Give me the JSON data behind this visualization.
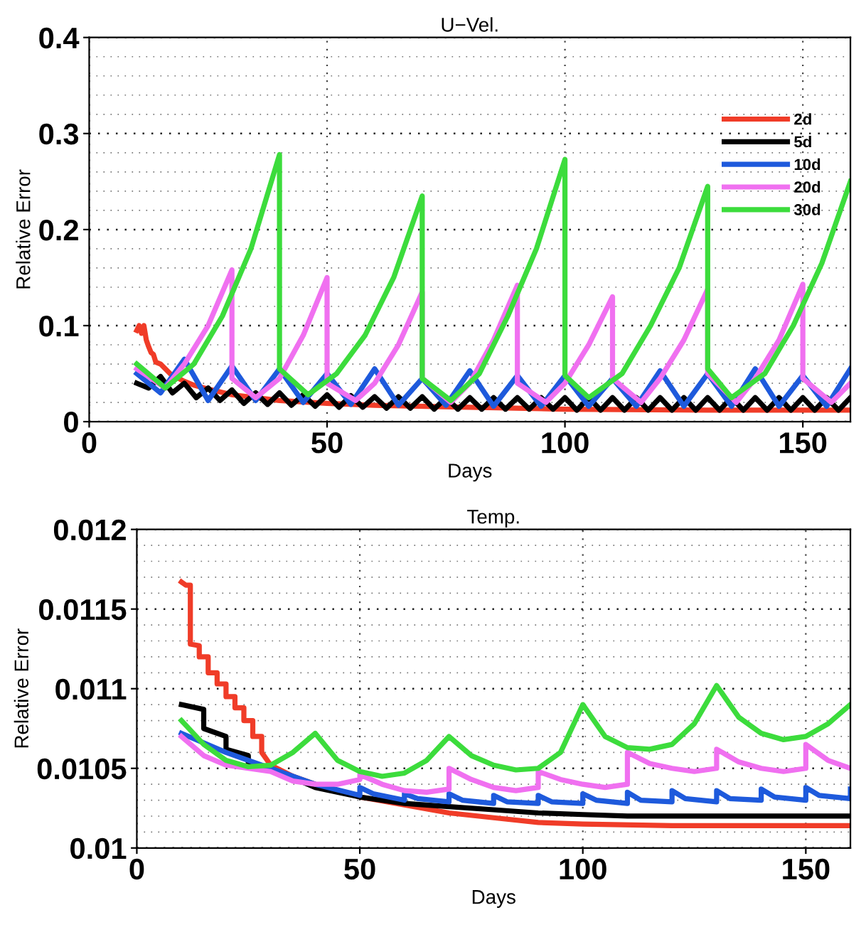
{
  "chart_data": [
    {
      "type": "line",
      "title": "U−Vel.",
      "xlabel": "Days",
      "ylabel": "Relative Error",
      "xlim": [
        0,
        160
      ],
      "ylim": [
        0,
        0.4
      ],
      "xticks": [
        0,
        50,
        100,
        150
      ],
      "yticks": [
        0,
        0.1,
        0.2,
        0.3,
        0.4
      ],
      "grid": true,
      "legend": "top right",
      "line_style": "solid",
      "series": [
        {
          "name": "2d",
          "color": "#f03c28",
          "x": [
            10,
            10.5,
            11,
            11.5,
            12,
            12.5,
            13,
            13.5,
            14,
            15,
            16,
            17,
            18,
            20,
            22,
            25,
            30,
            35,
            40,
            50,
            60,
            80,
            100,
            130,
            160
          ],
          "values": [
            0.095,
            0.1,
            0.092,
            0.1,
            0.085,
            0.078,
            0.072,
            0.07,
            0.062,
            0.06,
            0.055,
            0.05,
            0.047,
            0.042,
            0.038,
            0.034,
            0.028,
            0.025,
            0.022,
            0.019,
            0.017,
            0.015,
            0.013,
            0.012,
            0.012
          ]
        },
        {
          "name": "5d",
          "color": "#000000",
          "x": [
            10,
            12.5,
            15,
            17.5,
            20,
            22.5,
            25,
            27.5,
            30,
            32.5,
            35,
            37.5,
            40,
            42.5,
            45,
            47.5,
            50,
            52.5,
            55,
            57.5,
            60,
            62.5,
            65,
            67.5,
            70,
            72.5,
            75,
            77.5,
            80,
            82.5,
            85,
            87.5,
            90,
            92.5,
            95,
            97.5,
            100,
            102.5,
            105,
            107.5,
            110,
            112.5,
            115,
            117.5,
            120,
            122.5,
            125,
            127.5,
            130,
            132.5,
            135,
            137.5,
            140,
            142.5,
            145,
            147.5,
            150,
            152.5,
            155,
            157.5,
            160
          ],
          "values": [
            0.04,
            0.035,
            0.047,
            0.03,
            0.04,
            0.025,
            0.035,
            0.022,
            0.033,
            0.019,
            0.03,
            0.018,
            0.03,
            0.017,
            0.028,
            0.016,
            0.028,
            0.015,
            0.027,
            0.015,
            0.026,
            0.014,
            0.026,
            0.014,
            0.026,
            0.013,
            0.025,
            0.013,
            0.025,
            0.013,
            0.025,
            0.013,
            0.025,
            0.013,
            0.025,
            0.013,
            0.025,
            0.012,
            0.025,
            0.012,
            0.025,
            0.012,
            0.025,
            0.012,
            0.025,
            0.012,
            0.025,
            0.012,
            0.025,
            0.012,
            0.025,
            0.012,
            0.025,
            0.012,
            0.025,
            0.012,
            0.025,
            0.012,
            0.025,
            0.012,
            0.025
          ]
        },
        {
          "name": "10d",
          "color": "#1e5adc",
          "x": [
            10,
            15,
            20,
            25,
            30,
            35,
            40,
            45,
            50,
            55,
            60,
            65,
            70,
            75,
            80,
            85,
            90,
            95,
            100,
            105,
            110,
            115,
            120,
            125,
            130,
            135,
            140,
            145,
            150,
            155,
            160
          ],
          "values": [
            0.05,
            0.03,
            0.065,
            0.022,
            0.058,
            0.022,
            0.055,
            0.02,
            0.05,
            0.018,
            0.055,
            0.017,
            0.045,
            0.017,
            0.053,
            0.016,
            0.048,
            0.016,
            0.048,
            0.016,
            0.045,
            0.016,
            0.053,
            0.016,
            0.05,
            0.016,
            0.055,
            0.016,
            0.048,
            0.016,
            0.055
          ]
        },
        {
          "name": "20d",
          "color": "#f070f0",
          "x": [
            10,
            16,
            20,
            25,
            30,
            30,
            35,
            40,
            45,
            50,
            50,
            56,
            60,
            65,
            70,
            70,
            76,
            80,
            85,
            90,
            90,
            96,
            100,
            105,
            110,
            110,
            116,
            120,
            125,
            130,
            130,
            136,
            140,
            145,
            150,
            150,
            156,
            160
          ],
          "values": [
            0.055,
            0.035,
            0.06,
            0.1,
            0.158,
            0.045,
            0.025,
            0.045,
            0.09,
            0.15,
            0.04,
            0.022,
            0.04,
            0.08,
            0.135,
            0.045,
            0.02,
            0.04,
            0.085,
            0.142,
            0.04,
            0.02,
            0.04,
            0.08,
            0.13,
            0.045,
            0.02,
            0.045,
            0.085,
            0.138,
            0.05,
            0.02,
            0.045,
            0.085,
            0.143,
            0.045,
            0.02,
            0.04
          ]
        },
        {
          "name": "30d",
          "color": "#3cdc3c",
          "x": [
            10,
            16,
            22,
            28,
            34,
            40,
            40,
            46,
            52,
            58,
            64,
            70,
            70,
            76,
            82,
            88,
            94,
            100,
            100,
            105,
            112,
            118,
            124,
            130,
            130,
            135,
            142,
            148,
            154,
            160
          ],
          "values": [
            0.06,
            0.035,
            0.06,
            0.11,
            0.18,
            0.278,
            0.055,
            0.028,
            0.05,
            0.09,
            0.15,
            0.235,
            0.045,
            0.022,
            0.05,
            0.11,
            0.18,
            0.273,
            0.048,
            0.025,
            0.05,
            0.1,
            0.16,
            0.245,
            0.055,
            0.025,
            0.05,
            0.1,
            0.165,
            0.25
          ]
        }
      ]
    },
    {
      "type": "line",
      "title": "Temp.",
      "xlabel": "Days",
      "ylabel": "Relative Error",
      "xlim": [
        0,
        160
      ],
      "ylim": [
        0.01,
        0.012
      ],
      "xticks": [
        0,
        50,
        100,
        150
      ],
      "yticks": [
        0.01,
        0.0105,
        0.011,
        0.0115,
        0.012
      ],
      "grid": true,
      "line_style": "solid",
      "series": [
        {
          "color": "#f03c28",
          "x": [
            10,
            11,
            12,
            12,
            14,
            14,
            16,
            16,
            18,
            18,
            20,
            20,
            22,
            22,
            24,
            24,
            26,
            26,
            28,
            28,
            30,
            35,
            40,
            50,
            60,
            70,
            80,
            90,
            100,
            120,
            160
          ],
          "values": [
            0.01167,
            0.01165,
            0.01165,
            0.01128,
            0.01127,
            0.0112,
            0.0112,
            0.0111,
            0.0111,
            0.01103,
            0.01103,
            0.01095,
            0.01095,
            0.01088,
            0.01088,
            0.0108,
            0.0108,
            0.0107,
            0.0107,
            0.0106,
            0.01052,
            0.01045,
            0.0104,
            0.01032,
            0.01027,
            0.01022,
            0.01019,
            0.01016,
            0.01015,
            0.01014,
            0.01014
          ]
        },
        {
          "color": "#000000",
          "x": [
            10,
            15,
            15,
            20,
            20,
            25,
            25,
            30,
            40,
            50,
            60,
            70,
            80,
            90,
            100,
            110,
            120,
            130,
            140,
            150,
            160
          ],
          "values": [
            0.0109,
            0.01087,
            0.01075,
            0.0107,
            0.01062,
            0.01058,
            0.01052,
            0.0105,
            0.01038,
            0.01032,
            0.01028,
            0.01026,
            0.01024,
            0.01022,
            0.01021,
            0.0102,
            0.0102,
            0.0102,
            0.0102,
            0.0102,
            0.0102
          ]
        },
        {
          "color": "#1e5adc",
          "x": [
            10,
            20,
            30,
            40,
            50,
            50,
            53,
            60,
            60,
            63,
            70,
            70,
            73,
            80,
            80,
            83,
            90,
            90,
            93,
            100,
            100,
            103,
            110,
            110,
            113,
            120,
            120,
            123,
            130,
            130,
            133,
            140,
            140,
            143,
            150,
            150,
            153,
            160,
            160
          ],
          "values": [
            0.01072,
            0.0106,
            0.0105,
            0.0104,
            0.01033,
            0.01038,
            0.01034,
            0.0103,
            0.01034,
            0.01031,
            0.01029,
            0.01034,
            0.0103,
            0.01028,
            0.01033,
            0.01029,
            0.01028,
            0.01033,
            0.01029,
            0.01028,
            0.01034,
            0.0103,
            0.01028,
            0.01035,
            0.0103,
            0.01029,
            0.01036,
            0.01031,
            0.01029,
            0.01036,
            0.01031,
            0.0103,
            0.01037,
            0.01032,
            0.0103,
            0.01038,
            0.01033,
            0.01031,
            0.01037
          ]
        },
        {
          "color": "#f070f0",
          "x": [
            10,
            15,
            20,
            25,
            30,
            35,
            40,
            45,
            50,
            50,
            55,
            60,
            65,
            70,
            70,
            75,
            80,
            85,
            90,
            90,
            95,
            100,
            105,
            110,
            110,
            115,
            120,
            125,
            130,
            130,
            135,
            140,
            145,
            150,
            150,
            155,
            160
          ],
          "values": [
            0.0107,
            0.01058,
            0.01052,
            0.0105,
            0.01048,
            0.01042,
            0.0104,
            0.0104,
            0.01043,
            0.01046,
            0.0104,
            0.01036,
            0.01035,
            0.01037,
            0.0105,
            0.01043,
            0.01038,
            0.01036,
            0.01038,
            0.01048,
            0.01043,
            0.0104,
            0.01038,
            0.0104,
            0.0106,
            0.01053,
            0.0105,
            0.01048,
            0.0105,
            0.01062,
            0.01054,
            0.0105,
            0.01048,
            0.0105,
            0.01065,
            0.01055,
            0.0105
          ]
        },
        {
          "color": "#3cdc3c",
          "x": [
            10,
            15,
            20,
            25,
            30,
            35,
            40,
            45,
            50,
            55,
            60,
            65,
            70,
            75,
            80,
            85,
            90,
            95,
            100,
            105,
            110,
            115,
            120,
            125,
            130,
            135,
            140,
            145,
            150,
            155,
            160
          ],
          "values": [
            0.0108,
            0.01065,
            0.01055,
            0.01051,
            0.01052,
            0.0106,
            0.01072,
            0.01055,
            0.01048,
            0.01045,
            0.01047,
            0.01055,
            0.0107,
            0.01058,
            0.01052,
            0.01049,
            0.0105,
            0.0106,
            0.0109,
            0.0107,
            0.01063,
            0.01062,
            0.01065,
            0.01078,
            0.01102,
            0.01082,
            0.01072,
            0.01068,
            0.0107,
            0.01078,
            0.0109
          ]
        }
      ]
    }
  ]
}
